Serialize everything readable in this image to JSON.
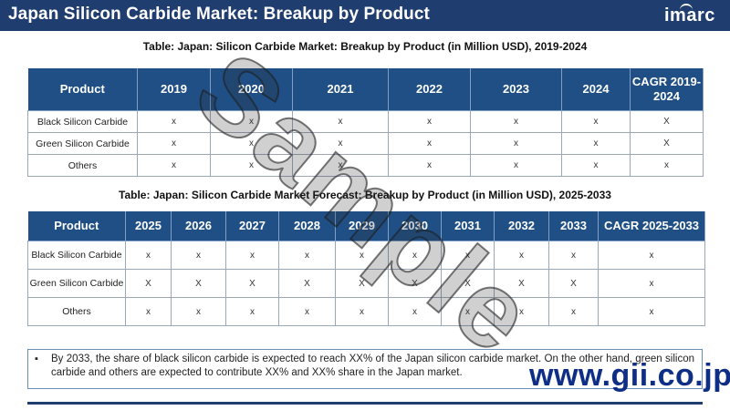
{
  "header": {
    "title": "Japan Silicon Carbide Market: Breakup by Product",
    "logo": "imarc"
  },
  "table1": {
    "caption": "Table: Japan: Silicon Carbide Market: Breakup by Product (in Million USD), 2019-2024",
    "columns": [
      "Product",
      "2019",
      "2020",
      "2021",
      "2022",
      "2023",
      "2024",
      "CAGR 2019-2024"
    ],
    "rows": [
      {
        "product": "Black Silicon Carbide",
        "values": [
          "x",
          "x",
          "x",
          "x",
          "x",
          "x",
          "X"
        ]
      },
      {
        "product": "Green Silicon Carbide",
        "values": [
          "x",
          "x",
          "x",
          "x",
          "x",
          "x",
          "X"
        ]
      },
      {
        "product": "Others",
        "values": [
          "x",
          "x",
          "x",
          "x",
          "x",
          "x",
          "x"
        ]
      }
    ]
  },
  "table2": {
    "caption": "Table: Japan: Silicon Carbide Market Forecast: Breakup by Product (in Million USD), 2025-2033",
    "columns": [
      "Product",
      "2025",
      "2026",
      "2027",
      "2028",
      "2029",
      "2030",
      "2031",
      "2032",
      "2033",
      "CAGR 2025-2033"
    ],
    "rows": [
      {
        "product": "Black Silicon Carbide",
        "values": [
          "x",
          "x",
          "x",
          "x",
          "x",
          "x",
          "x",
          "x",
          "x",
          "x"
        ]
      },
      {
        "product": "Green Silicon Carbide",
        "values": [
          "X",
          "X",
          "X",
          "X",
          "X",
          "X",
          "X",
          "X",
          "X",
          "x"
        ]
      },
      {
        "product": "Others",
        "values": [
          "x",
          "x",
          "x",
          "x",
          "x",
          "x",
          "x",
          "x",
          "x",
          "x"
        ]
      }
    ]
  },
  "note": {
    "bullet": "▪",
    "text": "By 2033, the share of black silicon carbide is expected to reach XX% of the Japan silicon carbide market. On the other hand, green silicon carbide and others are expected to contribute XX% and XX% share in the Japan market."
  },
  "watermark": "Sample",
  "site_watermark": "www.gii.co.jp"
}
